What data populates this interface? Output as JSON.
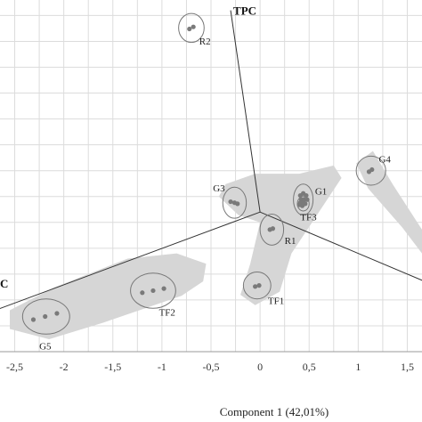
{
  "chart_data": {
    "type": "scatter",
    "title": "",
    "xlabel": "Component 1 (42,01%)",
    "ylabel": "",
    "xlim": [
      -2.65,
      1.65
    ],
    "ylim": [
      -1.0,
      2.4
    ],
    "grid": true,
    "x_ticks": [
      -2.5,
      -2,
      -1.5,
      -1,
      -0.5,
      0,
      0.5,
      1,
      1.5
    ],
    "x_tick_labels": [
      "-2,5",
      "-2",
      "-1,5",
      "-1",
      "-0,5",
      "0",
      "0,5",
      "1",
      "1,5"
    ],
    "series": [
      {
        "name": "R2",
        "points": [
          [
            -0.72,
            2.12
          ],
          [
            -0.68,
            2.14
          ]
        ]
      },
      {
        "name": "G4",
        "points": [
          [
            1.11,
            0.74
          ],
          [
            1.14,
            0.76
          ]
        ]
      },
      {
        "name": "G3",
        "points": [
          [
            -0.3,
            0.45
          ],
          [
            -0.26,
            0.44
          ],
          [
            -0.23,
            0.43
          ]
        ]
      },
      {
        "name": "G1",
        "points": [
          [
            0.41,
            0.51
          ],
          [
            0.44,
            0.53
          ],
          [
            0.47,
            0.51
          ],
          [
            0.42,
            0.47
          ],
          [
            0.45,
            0.47
          ],
          [
            0.48,
            0.47
          ],
          [
            0.4,
            0.42
          ],
          [
            0.43,
            0.41
          ],
          [
            0.46,
            0.43
          ]
        ]
      },
      {
        "name": "TF3",
        "points": [
          [
            0.41,
            0.44
          ],
          [
            0.44,
            0.44
          ]
        ]
      },
      {
        "name": "R1",
        "points": [
          [
            0.1,
            0.18
          ],
          [
            0.13,
            0.19
          ]
        ]
      },
      {
        "name": "TF1",
        "points": [
          [
            -0.05,
            -0.37
          ],
          [
            -0.01,
            -0.36
          ]
        ]
      },
      {
        "name": "TF2",
        "points": [
          [
            -1.2,
            -0.43
          ],
          [
            -1.09,
            -0.41
          ],
          [
            -0.98,
            -0.39
          ]
        ]
      },
      {
        "name": "G5",
        "points": [
          [
            -2.31,
            -0.69
          ],
          [
            -2.19,
            -0.66
          ],
          [
            -2.07,
            -0.63
          ]
        ]
      }
    ],
    "group_labels": [
      {
        "text": "R2",
        "x": -0.62,
        "y": 1.97
      },
      {
        "text": "G4",
        "x": 1.21,
        "y": 0.83
      },
      {
        "text": "G3",
        "x": -0.48,
        "y": 0.55
      },
      {
        "text": "G1",
        "x": 0.56,
        "y": 0.52
      },
      {
        "text": "TF3",
        "x": 0.41,
        "y": 0.27
      },
      {
        "text": "R1",
        "x": 0.25,
        "y": 0.04
      },
      {
        "text": "TF1",
        "x": 0.08,
        "y": -0.54
      },
      {
        "text": "TF2",
        "x": -1.03,
        "y": -0.65
      },
      {
        "text": "G5",
        "x": -2.25,
        "y": -0.98
      }
    ],
    "ellipses": [
      {
        "cx": -0.7,
        "cy": 2.13,
        "rx": 0.13,
        "ry": 0.14
      },
      {
        "cx": 1.13,
        "cy": 0.75,
        "rx": 0.15,
        "ry": 0.14
      },
      {
        "cx": -0.26,
        "cy": 0.44,
        "rx": 0.12,
        "ry": 0.15
      },
      {
        "cx": 0.44,
        "cy": 0.47,
        "rx": 0.1,
        "ry": 0.15
      },
      {
        "cx": 0.44,
        "cy": 0.43,
        "rx": 0.06,
        "ry": 0.07
      },
      {
        "cx": 0.12,
        "cy": 0.18,
        "rx": 0.12,
        "ry": 0.15
      },
      {
        "cx": -0.03,
        "cy": -0.36,
        "rx": 0.14,
        "ry": 0.13
      },
      {
        "cx": -1.09,
        "cy": -0.41,
        "rx": 0.23,
        "ry": 0.17
      },
      {
        "cx": -2.18,
        "cy": -0.66,
        "rx": 0.24,
        "ry": 0.17
      }
    ],
    "hulls": [
      [
        [
          -2.55,
          -0.78
        ],
        [
          -2.15,
          -0.88
        ],
        [
          -1.6,
          -0.72
        ],
        [
          -0.8,
          -0.46
        ],
        [
          -0.58,
          -0.32
        ],
        [
          -0.55,
          -0.15
        ],
        [
          -0.85,
          -0.05
        ],
        [
          -1.35,
          -0.1
        ],
        [
          -2.1,
          -0.38
        ],
        [
          -2.55,
          -0.6
        ]
      ],
      [
        [
          -0.42,
          0.5
        ],
        [
          -0.35,
          0.62
        ],
        [
          -0.05,
          0.72
        ],
        [
          0.4,
          0.72
        ],
        [
          0.75,
          0.8
        ],
        [
          0.83,
          0.68
        ],
        [
          0.6,
          0.35
        ],
        [
          0.32,
          -0.05
        ],
        [
          0.2,
          -0.42
        ],
        [
          -0.05,
          -0.55
        ],
        [
          -0.2,
          -0.45
        ],
        [
          -0.1,
          -0.15
        ],
        [
          0.0,
          0.25
        ],
        [
          -0.22,
          0.32
        ]
      ],
      [
        [
          0.98,
          0.82
        ],
        [
          1.15,
          0.94
        ],
        [
          1.35,
          0.62
        ],
        [
          1.65,
          0.18
        ],
        [
          1.65,
          -0.05
        ],
        [
          1.45,
          0.2
        ],
        [
          1.1,
          0.58
        ]
      ]
    ],
    "biplot_vectors": [
      {
        "label": "TPC",
        "x": -0.3,
        "y": 2.3
      },
      {
        "label": "C",
        "x": -2.7,
        "y": -0.6
      },
      {
        "label": "",
        "x": 1.7,
        "y": -0.33
      }
    ],
    "biplot_origin": [
      0,
      0.35
    ],
    "colors": {
      "hull": "#d6d6d6",
      "point": "#7a7a7a",
      "ellipse": "#777777",
      "vector": "#333333",
      "grid": "#dcdcdc",
      "axis": "#999999"
    }
  }
}
